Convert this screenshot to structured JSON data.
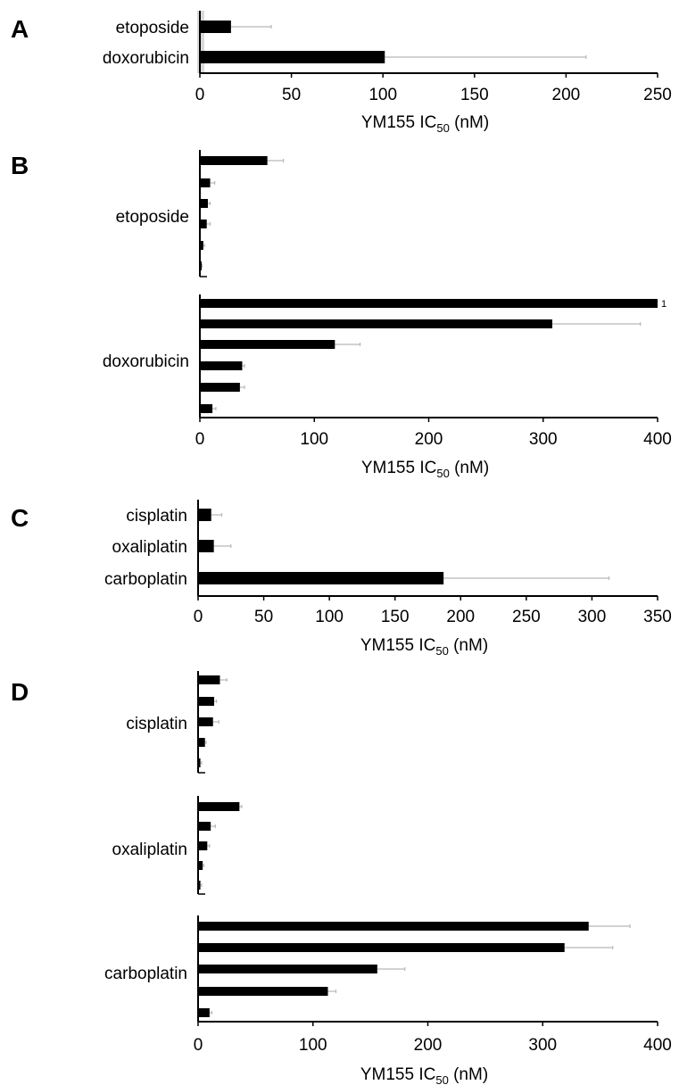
{
  "chart_data": [
    {
      "panel": "A",
      "type": "bar",
      "orientation": "horizontal",
      "categories": [
        "etoposide",
        "doxorubicin"
      ],
      "values": [
        17,
        101
      ],
      "errors": [
        22,
        110
      ],
      "xlabel": {
        "main": "YM155 IC",
        "sub": "50",
        "tail": " (nM)"
      },
      "xlim": [
        0,
        250
      ],
      "xticks": [
        "0",
        "50",
        "100",
        "150",
        "200",
        "250"
      ],
      "grid": false
    },
    {
      "panel": "B",
      "type": "bar",
      "orientation": "horizontal",
      "groups": [
        {
          "name": "etoposide",
          "values": [
            59,
            9,
            7,
            6,
            3,
            1
          ],
          "errors": [
            14,
            4,
            2,
            3,
            1,
            1
          ]
        },
        {
          "name": "doxorubicin",
          "values": [
            400,
            308,
            118,
            37,
            35,
            11
          ],
          "errors": [
            0,
            77,
            22,
            2,
            4,
            3
          ]
        }
      ],
      "annotation": "1",
      "xlabel": {
        "main": "YM155 IC",
        "sub": "50",
        "tail": " (nM)"
      },
      "xlim": [
        0,
        400
      ],
      "xticks": [
        "0",
        "100",
        "200",
        "300",
        "400"
      ],
      "grid": false
    },
    {
      "panel": "C",
      "type": "bar",
      "orientation": "horizontal",
      "categories": [
        "cisplatin",
        "oxaliplatin",
        "carboplatin"
      ],
      "values": [
        10,
        12,
        187
      ],
      "errors": [
        8,
        13,
        126
      ],
      "xlabel": {
        "main": "YM155 IC",
        "sub": "50",
        "tail": " (nM)"
      },
      "xlim": [
        0,
        350
      ],
      "xticks": [
        "0",
        "50",
        "100",
        "150",
        "200",
        "250",
        "300",
        "350"
      ],
      "grid": false
    },
    {
      "panel": "D",
      "type": "bar",
      "orientation": "horizontal",
      "groups": [
        {
          "name": "cisplatin",
          "values": [
            19,
            14,
            13,
            6,
            2
          ],
          "errors": [
            6,
            2,
            5,
            1,
            1
          ]
        },
        {
          "name": "oxaliplatin",
          "values": [
            36,
            11,
            8,
            4,
            2
          ],
          "errors": [
            2,
            4,
            2,
            1,
            1
          ]
        },
        {
          "name": "carboplatin",
          "values": [
            340,
            319,
            156,
            113,
            10
          ],
          "errors": [
            36,
            42,
            24,
            7,
            2
          ]
        }
      ],
      "xlabel": {
        "main": "YM155 IC",
        "sub": "50",
        "tail": " (nM)"
      },
      "xlim": [
        0,
        400
      ],
      "xticks": [
        "0",
        "100",
        "200",
        "300",
        "400"
      ],
      "grid": false
    }
  ]
}
